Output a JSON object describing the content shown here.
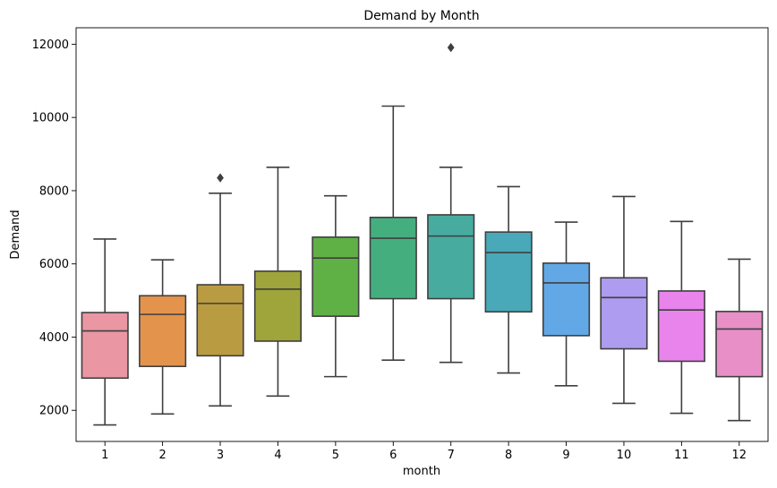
{
  "chart_data": {
    "type": "box",
    "title": "Demand by Month",
    "xlabel": "month",
    "ylabel": "Demand",
    "ylim": [
      1150,
      12450
    ],
    "yticks": [
      2000,
      4000,
      6000,
      8000,
      10000,
      12000
    ],
    "grid": false,
    "categories": [
      "1",
      "2",
      "3",
      "4",
      "5",
      "6",
      "7",
      "8",
      "9",
      "10",
      "11",
      "12"
    ],
    "colors": [
      "#ea96a3",
      "#e4934d",
      "#b99b42",
      "#a0a53b",
      "#5fb145",
      "#45ae7f",
      "#48aba0",
      "#49a9b8",
      "#62a8e6",
      "#ad9cef",
      "#e884eb",
      "#e88fc7"
    ],
    "edge_color": "#3f3f3f",
    "boxes": [
      {
        "month": "1",
        "whisker_low": 1600,
        "q1": 2880,
        "median": 4170,
        "q3": 4670,
        "whisker_high": 6680,
        "outliers": []
      },
      {
        "month": "2",
        "whisker_low": 1900,
        "q1": 3200,
        "median": 4620,
        "q3": 5130,
        "whisker_high": 6110,
        "outliers": []
      },
      {
        "month": "3",
        "whisker_low": 2120,
        "q1": 3490,
        "median": 4920,
        "q3": 5430,
        "whisker_high": 7930,
        "outliers": [
          8350
        ]
      },
      {
        "month": "4",
        "whisker_low": 2390,
        "q1": 3890,
        "median": 5310,
        "q3": 5800,
        "whisker_high": 8640,
        "outliers": []
      },
      {
        "month": "5",
        "whisker_low": 2920,
        "q1": 4570,
        "median": 6160,
        "q3": 6730,
        "whisker_high": 7860,
        "outliers": []
      },
      {
        "month": "6",
        "whisker_low": 3370,
        "q1": 5050,
        "median": 6700,
        "q3": 7270,
        "whisker_high": 10310,
        "outliers": []
      },
      {
        "month": "7",
        "whisker_low": 3310,
        "q1": 5050,
        "median": 6760,
        "q3": 7340,
        "whisker_high": 8640,
        "outliers": [
          11910
        ]
      },
      {
        "month": "8",
        "whisker_low": 3020,
        "q1": 4690,
        "median": 6310,
        "q3": 6870,
        "whisker_high": 8110,
        "outliers": []
      },
      {
        "month": "9",
        "whisker_low": 2670,
        "q1": 4040,
        "median": 5480,
        "q3": 6020,
        "whisker_high": 7140,
        "outliers": []
      },
      {
        "month": "10",
        "whisker_low": 2190,
        "q1": 3680,
        "median": 5080,
        "q3": 5620,
        "whisker_high": 7840,
        "outliers": []
      },
      {
        "month": "11",
        "whisker_low": 1920,
        "q1": 3340,
        "median": 4740,
        "q3": 5260,
        "whisker_high": 7160,
        "outliers": []
      },
      {
        "month": "12",
        "whisker_low": 1720,
        "q1": 2920,
        "median": 4220,
        "q3": 4700,
        "whisker_high": 6130,
        "outliers": []
      }
    ]
  }
}
